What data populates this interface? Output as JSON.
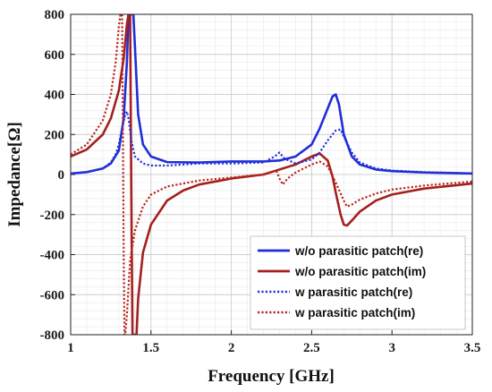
{
  "chart_data": {
    "type": "line",
    "xlabel": "Frequency [GHz]",
    "ylabel": "Impedance[Ω]",
    "xlim": [
      1,
      3.5
    ],
    "ylim": [
      -800,
      800
    ],
    "x_ticks": [
      "1",
      "1.5",
      "2",
      "2.5",
      "3",
      "3.5"
    ],
    "y_ticks": [
      "-800",
      "-600",
      "-400",
      "-200",
      "0",
      "200",
      "400",
      "600",
      "800"
    ],
    "grid": true,
    "minor_grid": true,
    "legend_position": "bottom-right",
    "series": [
      {
        "name": "w/o parasitic patch(re)",
        "color": "#1f2fd6",
        "style": "solid",
        "x": [
          1.0,
          1.1,
          1.2,
          1.25,
          1.3,
          1.33,
          1.35,
          1.36,
          1.37,
          1.38,
          1.39,
          1.4,
          1.42,
          1.45,
          1.5,
          1.6,
          1.8,
          2.0,
          2.2,
          2.3,
          2.4,
          2.5,
          2.55,
          2.6,
          2.63,
          2.65,
          2.67,
          2.7,
          2.75,
          2.8,
          2.9,
          3.0,
          3.2,
          3.5
        ],
        "y": [
          5,
          12,
          30,
          55,
          120,
          280,
          560,
          800,
          800,
          800,
          800,
          640,
          300,
          150,
          90,
          62,
          60,
          65,
          65,
          70,
          90,
          150,
          230,
          330,
          390,
          400,
          350,
          200,
          90,
          50,
          25,
          17,
          10,
          5
        ]
      },
      {
        "name": "w/o parasitic patch(im)",
        "color": "#a3201f",
        "style": "solid",
        "x": [
          1.0,
          1.1,
          1.2,
          1.25,
          1.3,
          1.33,
          1.35,
          1.36,
          1.37,
          1.375,
          1.38,
          1.385,
          1.39,
          1.4,
          1.41,
          1.42,
          1.45,
          1.5,
          1.6,
          1.7,
          1.8,
          2.0,
          2.2,
          2.4,
          2.5,
          2.55,
          2.6,
          2.63,
          2.65,
          2.68,
          2.7,
          2.72,
          2.75,
          2.8,
          2.9,
          3.0,
          3.2,
          3.5
        ],
        "y": [
          90,
          125,
          200,
          280,
          420,
          580,
          750,
          800,
          800,
          200,
          -350,
          -800,
          -800,
          -800,
          -800,
          -620,
          -390,
          -250,
          -130,
          -80,
          -50,
          -20,
          0,
          50,
          90,
          105,
          70,
          -10,
          -90,
          -200,
          -250,
          -255,
          -230,
          -185,
          -130,
          -100,
          -70,
          -45
        ]
      },
      {
        "name": "w parasitic patch(re)",
        "color": "#2233dd",
        "style": "dotted",
        "x": [
          1.0,
          1.1,
          1.2,
          1.25,
          1.28,
          1.3,
          1.32,
          1.34,
          1.35,
          1.36,
          1.38,
          1.4,
          1.45,
          1.5,
          1.6,
          1.8,
          2.0,
          2.2,
          2.27,
          2.3,
          2.33,
          2.4,
          2.5,
          2.55,
          2.6,
          2.65,
          2.68,
          2.7,
          2.75,
          2.8,
          2.9,
          3.0,
          3.2,
          3.5
        ],
        "y": [
          5,
          12,
          30,
          60,
          100,
          150,
          230,
          300,
          315,
          280,
          160,
          90,
          55,
          45,
          45,
          55,
          55,
          60,
          90,
          110,
          80,
          55,
          75,
          110,
          170,
          220,
          225,
          190,
          110,
          60,
          30,
          20,
          12,
          6
        ]
      },
      {
        "name": "w parasitic patch(im)",
        "color": "#b8281e",
        "style": "dotted",
        "x": [
          1.0,
          1.1,
          1.2,
          1.25,
          1.28,
          1.3,
          1.31,
          1.32,
          1.325,
          1.33,
          1.335,
          1.34,
          1.35,
          1.37,
          1.4,
          1.45,
          1.5,
          1.6,
          1.8,
          2.0,
          2.2,
          2.28,
          2.3,
          2.32,
          2.35,
          2.4,
          2.5,
          2.55,
          2.6,
          2.65,
          2.7,
          2.72,
          2.75,
          2.8,
          2.9,
          3.0,
          3.2,
          3.5
        ],
        "y": [
          100,
          150,
          270,
          400,
          560,
          740,
          800,
          800,
          250,
          -400,
          -800,
          -800,
          -700,
          -430,
          -280,
          -160,
          -100,
          -60,
          -30,
          -15,
          0,
          20,
          -20,
          -50,
          -20,
          10,
          50,
          65,
          40,
          -40,
          -130,
          -160,
          -150,
          -125,
          -95,
          -75,
          -55,
          -35
        ]
      }
    ]
  }
}
